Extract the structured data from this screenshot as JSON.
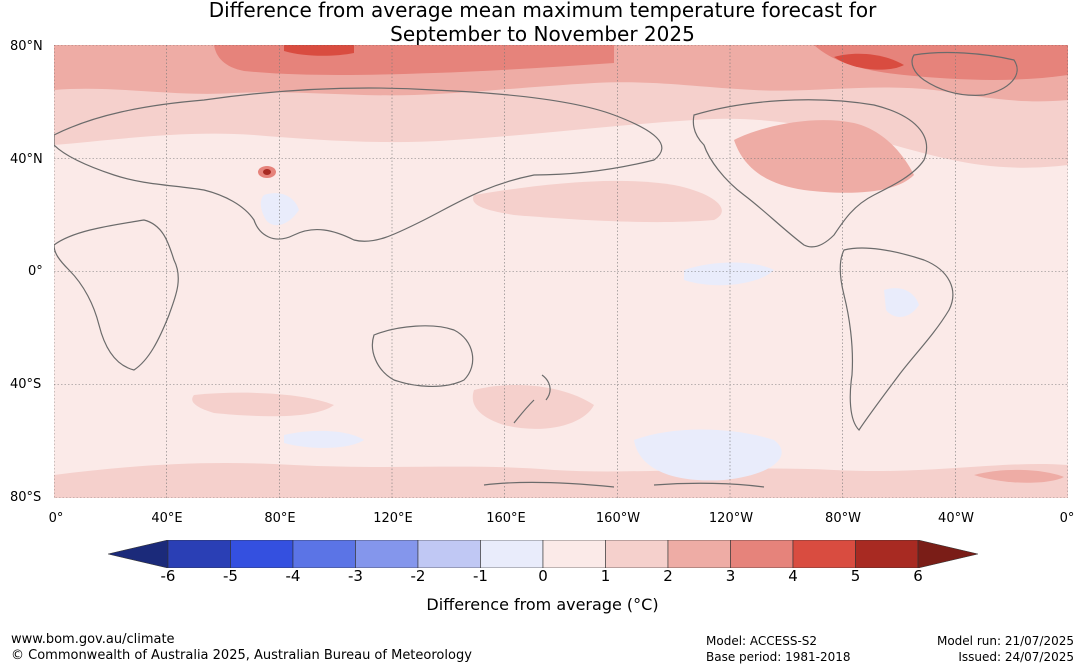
{
  "header": {
    "title_line1": "Difference from average mean maximum temperature forecast for",
    "title_line2": "September to November 2025"
  },
  "map": {
    "lat_labels": [
      "80°N",
      "40°N",
      "0°",
      "40°S",
      "80°S"
    ],
    "lon_labels": [
      "0°",
      "40°E",
      "80°E",
      "120°E",
      "160°E",
      "160°W",
      "120°W",
      "80°W",
      "40°W",
      "0°"
    ],
    "land_outline_color": "#6b6b6b",
    "grid_color": "#777777"
  },
  "colorbar": {
    "ticks": [
      "-6",
      "-5",
      "-4",
      "-3",
      "-2",
      "-1",
      "0",
      "1",
      "2",
      "3",
      "4",
      "5",
      "6"
    ],
    "colors": [
      "#1b2a7a",
      "#2a3fb5",
      "#3450e0",
      "#5b74e6",
      "#8496ec",
      "#c0c8f4",
      "#e9ecfb",
      "#fbeae8",
      "#f5d0cc",
      "#eeaca5",
      "#e6837b",
      "#d94c40",
      "#a82a22",
      "#7a1d17"
    ],
    "label": "Difference from average ($^\\circ$C)",
    "label_display": "Difference from average (°C)"
  },
  "footer": {
    "url": "www.bom.gov.au/climate",
    "copyright": "© Commonwealth of Australia 2025, Australian Bureau of Meteorology",
    "model": "Model: ACCESS-S2",
    "base_period": "Base period: 1981-2018",
    "model_run": "Model run: 21/07/2025",
    "issued": "Issued: 24/07/2025"
  }
}
